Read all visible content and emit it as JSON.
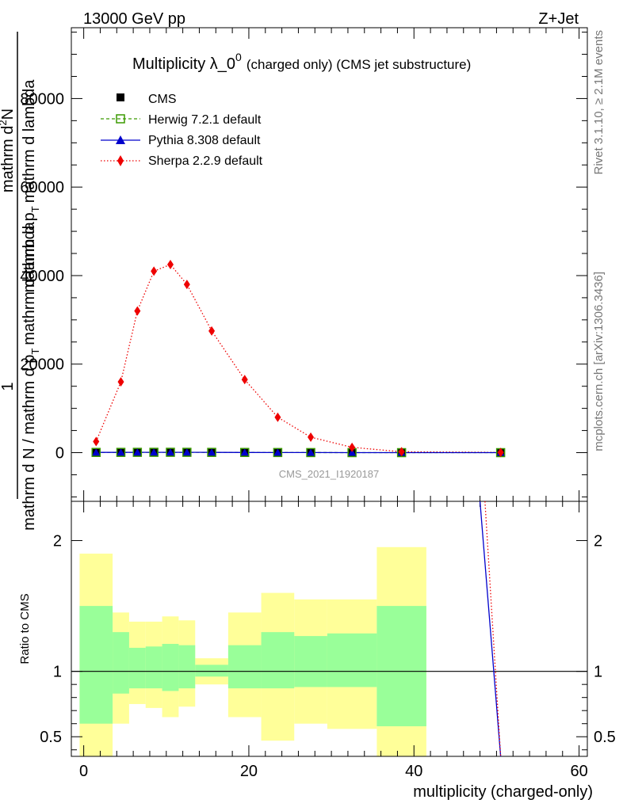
{
  "header": {
    "left": "13000 GeV pp",
    "right": "Z+Jet"
  },
  "side_labels": {
    "rivet": "Rivet 3.1.10, ≥ 2.1M events",
    "mcplots": "mcplots.cern.ch [arXiv:1306.3436]"
  },
  "title": {
    "main": "Multiplicity λ_0",
    "sup": "0",
    "suffix": "(charged only) (CMS jet substructure)"
  },
  "ylabel_upper": {
    "num1": "mathrm d",
    "num1_sup": "2",
    "num2": "N",
    "den1": "mathrm d p",
    "den1_sub": "T",
    "den2": "mathrm d lambda",
    "den_full": "mathrm d p",
    "den_full_sub": "T",
    "den_full_rest": "mathrm d lambda",
    "frac2_num": "1",
    "frac2_den": "mathrm d N / mathrm d p"
  },
  "analysis_id": "CMS_2021_I1920187",
  "xlabel": "multiplicity (charged-only)",
  "ylabel_ratio": "Ratio to CMS",
  "legend": {
    "cms": "CMS",
    "herwig": "Herwig 7.2.1 default",
    "pythia": "Pythia 8.308 default",
    "sherpa": "Sherpa 2.2.9 default"
  },
  "colors": {
    "cms": "#000000",
    "herwig": "#3a9a00",
    "pythia": "#0000cc",
    "sherpa": "#ee0000",
    "band_inner": "#99ff99",
    "band_outer": "#ffff99"
  },
  "chart_data": {
    "type": "scatter",
    "title": "Multiplicity λ_0^0 (charged only) (CMS jet substructure)",
    "xlabel": "multiplicity (charged-only)",
    "ylabel": "",
    "xlim": [
      -1.5,
      61
    ],
    "ylim": [
      -11000,
      96000
    ],
    "ratio_ylim": [
      0.35,
      2.3
    ],
    "x_ticks": [
      0,
      20,
      40,
      60
    ],
    "y_ticks": [
      0,
      20000,
      40000,
      60000,
      80000
    ],
    "ratio_ticks": [
      0.5,
      1,
      2
    ],
    "series": [
      {
        "name": "CMS",
        "x": [
          1.5,
          4.5,
          6.5,
          8.5,
          10.5,
          12.5,
          15.5,
          19.5,
          23.5,
          27.5,
          32.5,
          38.5,
          50.5
        ],
        "y": [
          50,
          60,
          70,
          75,
          80,
          75,
          60,
          45,
          30,
          15,
          5,
          1,
          0
        ]
      },
      {
        "name": "Herwig 7.2.1 default",
        "x": [
          1.5,
          4.5,
          6.5,
          8.5,
          10.5,
          12.5,
          15.5,
          19.5,
          23.5,
          27.5,
          32.5,
          38.5,
          50.5
        ],
        "y": [
          50,
          60,
          70,
          75,
          80,
          75,
          60,
          45,
          30,
          15,
          5,
          1,
          0
        ]
      },
      {
        "name": "Pythia 8.308 default",
        "x": [
          1.5,
          4.5,
          6.5,
          8.5,
          10.5,
          12.5,
          15.5,
          19.5,
          23.5,
          27.5,
          32.5,
          38.5,
          50.5
        ],
        "y": [
          50,
          60,
          70,
          75,
          80,
          75,
          60,
          45,
          30,
          15,
          5,
          1,
          0
        ]
      },
      {
        "name": "Sherpa 2.2.9 default",
        "x": [
          1.5,
          4.5,
          6.5,
          8.5,
          10.5,
          12.5,
          15.5,
          19.5,
          23.5,
          27.5,
          32.5,
          38.5,
          50.5
        ],
        "y": [
          2500,
          16000,
          32000,
          41000,
          42500,
          38000,
          27500,
          16500,
          8000,
          3500,
          1200,
          200,
          50
        ]
      }
    ],
    "ratio_band_edges": [
      -0.5,
      3.5,
      5.5,
      7.5,
      9.5,
      11.5,
      13.5,
      17.5,
      21.5,
      25.5,
      29.5,
      35.5,
      41.5
    ],
    "ratio_band_inner": [
      [
        0.6,
        1.5
      ],
      [
        0.83,
        1.3
      ],
      [
        0.87,
        1.18
      ],
      [
        0.87,
        1.19
      ],
      [
        0.85,
        1.21
      ],
      [
        0.87,
        1.2
      ],
      [
        0.96,
        1.05
      ],
      [
        0.87,
        1.2
      ],
      [
        0.87,
        1.3
      ],
      [
        0.88,
        1.27
      ],
      [
        0.88,
        1.29
      ],
      [
        0.58,
        1.5
      ]
    ],
    "ratio_band_outer": [
      [
        0.35,
        1.9
      ],
      [
        0.6,
        1.45
      ],
      [
        0.75,
        1.38
      ],
      [
        0.72,
        1.38
      ],
      [
        0.65,
        1.42
      ],
      [
        0.73,
        1.39
      ],
      [
        0.9,
        1.1
      ],
      [
        0.65,
        1.45
      ],
      [
        0.47,
        1.6
      ],
      [
        0.6,
        1.55
      ],
      [
        0.56,
        1.55
      ],
      [
        0.35,
        1.95
      ]
    ],
    "ratio_lines": [
      {
        "name": "Pythia 8.308 default",
        "x": [
          48.0,
          50.5
        ],
        "y": [
          2.3,
          0.35
        ]
      },
      {
        "name": "Sherpa 2.2.9 default",
        "x": [
          48.6,
          50.5
        ],
        "y": [
          2.3,
          0.35
        ]
      }
    ],
    "legend_position": "top-left",
    "grid": false
  }
}
